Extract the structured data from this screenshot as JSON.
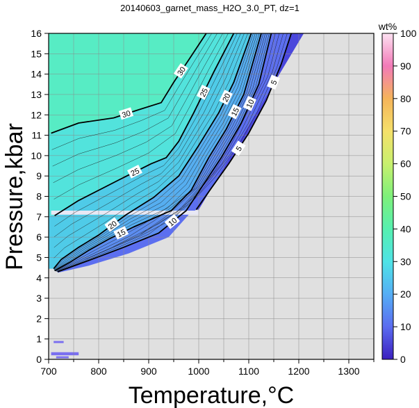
{
  "chart_data": {
    "type": "contour",
    "title": "20140603_garnet_mass_H2O_3.0_PT, dz=1",
    "xlabel": "Temperature,°C",
    "ylabel": "Pressure,kbar",
    "xlim": [
      700,
      1350
    ],
    "ylim": [
      0,
      16
    ],
    "x_ticks": [
      700,
      800,
      900,
      1000,
      1100,
      1200,
      1300
    ],
    "y_ticks": [
      0,
      1,
      2,
      3,
      4,
      5,
      6,
      7,
      8,
      9,
      10,
      11,
      12,
      13,
      14,
      15,
      16
    ],
    "grid": true,
    "colorbar": {
      "label": "wt%",
      "range": [
        0,
        100
      ],
      "ticks": [
        0,
        10,
        20,
        30,
        40,
        50,
        60,
        70,
        80,
        90,
        100
      ],
      "stops": [
        "#3b1fbf",
        "#5b6cf0",
        "#55aef5",
        "#4fe3e6",
        "#56f0b0",
        "#7ef07a",
        "#c8f06e",
        "#f5e06a",
        "#f5b45a",
        "#f27ab8",
        "#fde2f2"
      ]
    },
    "no_data_color": "#e0e0e0",
    "contours": [
      {
        "level": 30,
        "label": "30",
        "points": [
          [
            705,
            11.1
          ],
          [
            760,
            11.6
          ],
          [
            830,
            11.85
          ],
          [
            880,
            12.25
          ],
          [
            925,
            12.6
          ],
          [
            950,
            13.6
          ],
          [
            980,
            14.7
          ],
          [
            1015,
            16
          ]
        ]
      },
      {
        "level": 25,
        "label": "25",
        "points": [
          [
            712,
            7.05
          ],
          [
            760,
            7.8
          ],
          [
            840,
            8.8
          ],
          [
            905,
            9.6
          ],
          [
            935,
            9.9
          ],
          [
            960,
            10.7
          ],
          [
            990,
            12.1
          ],
          [
            1030,
            14.1
          ],
          [
            1070,
            16
          ]
        ]
      },
      {
        "level": 20,
        "label": "20",
        "points": [
          [
            710,
            4.45
          ],
          [
            725,
            4.9
          ],
          [
            760,
            5.5
          ],
          [
            800,
            6.1
          ],
          [
            855,
            7.1
          ],
          [
            910,
            7.95
          ],
          [
            960,
            9.0
          ],
          [
            1000,
            10.5
          ],
          [
            1040,
            12.1
          ],
          [
            1070,
            13.6
          ],
          [
            1105,
            16
          ]
        ]
      },
      {
        "level": 15,
        "label": "15",
        "points": [
          [
            712,
            4.35
          ],
          [
            745,
            4.8
          ],
          [
            780,
            5.35
          ],
          [
            820,
            5.9
          ],
          [
            870,
            6.5
          ],
          [
            945,
            7.3
          ],
          [
            985,
            8.3
          ],
          [
            1020,
            9.9
          ],
          [
            1055,
            11.3
          ],
          [
            1090,
            13.0
          ],
          [
            1125,
            16
          ]
        ]
      },
      {
        "level": 10,
        "label": "10",
        "points": [
          [
            718,
            4.3
          ],
          [
            780,
            4.85
          ],
          [
            850,
            5.5
          ],
          [
            920,
            6.2
          ],
          [
            975,
            7.3
          ],
          [
            1010,
            8.6
          ],
          [
            1045,
            9.9
          ],
          [
            1085,
            11.6
          ],
          [
            1120,
            13.5
          ],
          [
            1145,
            16
          ]
        ]
      },
      {
        "level": 5,
        "label": "5",
        "points": [
          [
            995,
            7.35
          ],
          [
            1025,
            8.4
          ],
          [
            1060,
            9.6
          ],
          [
            1100,
            11.1
          ],
          [
            1135,
            12.7
          ],
          [
            1165,
            14.5
          ],
          [
            1185,
            16
          ]
        ]
      }
    ]
  }
}
